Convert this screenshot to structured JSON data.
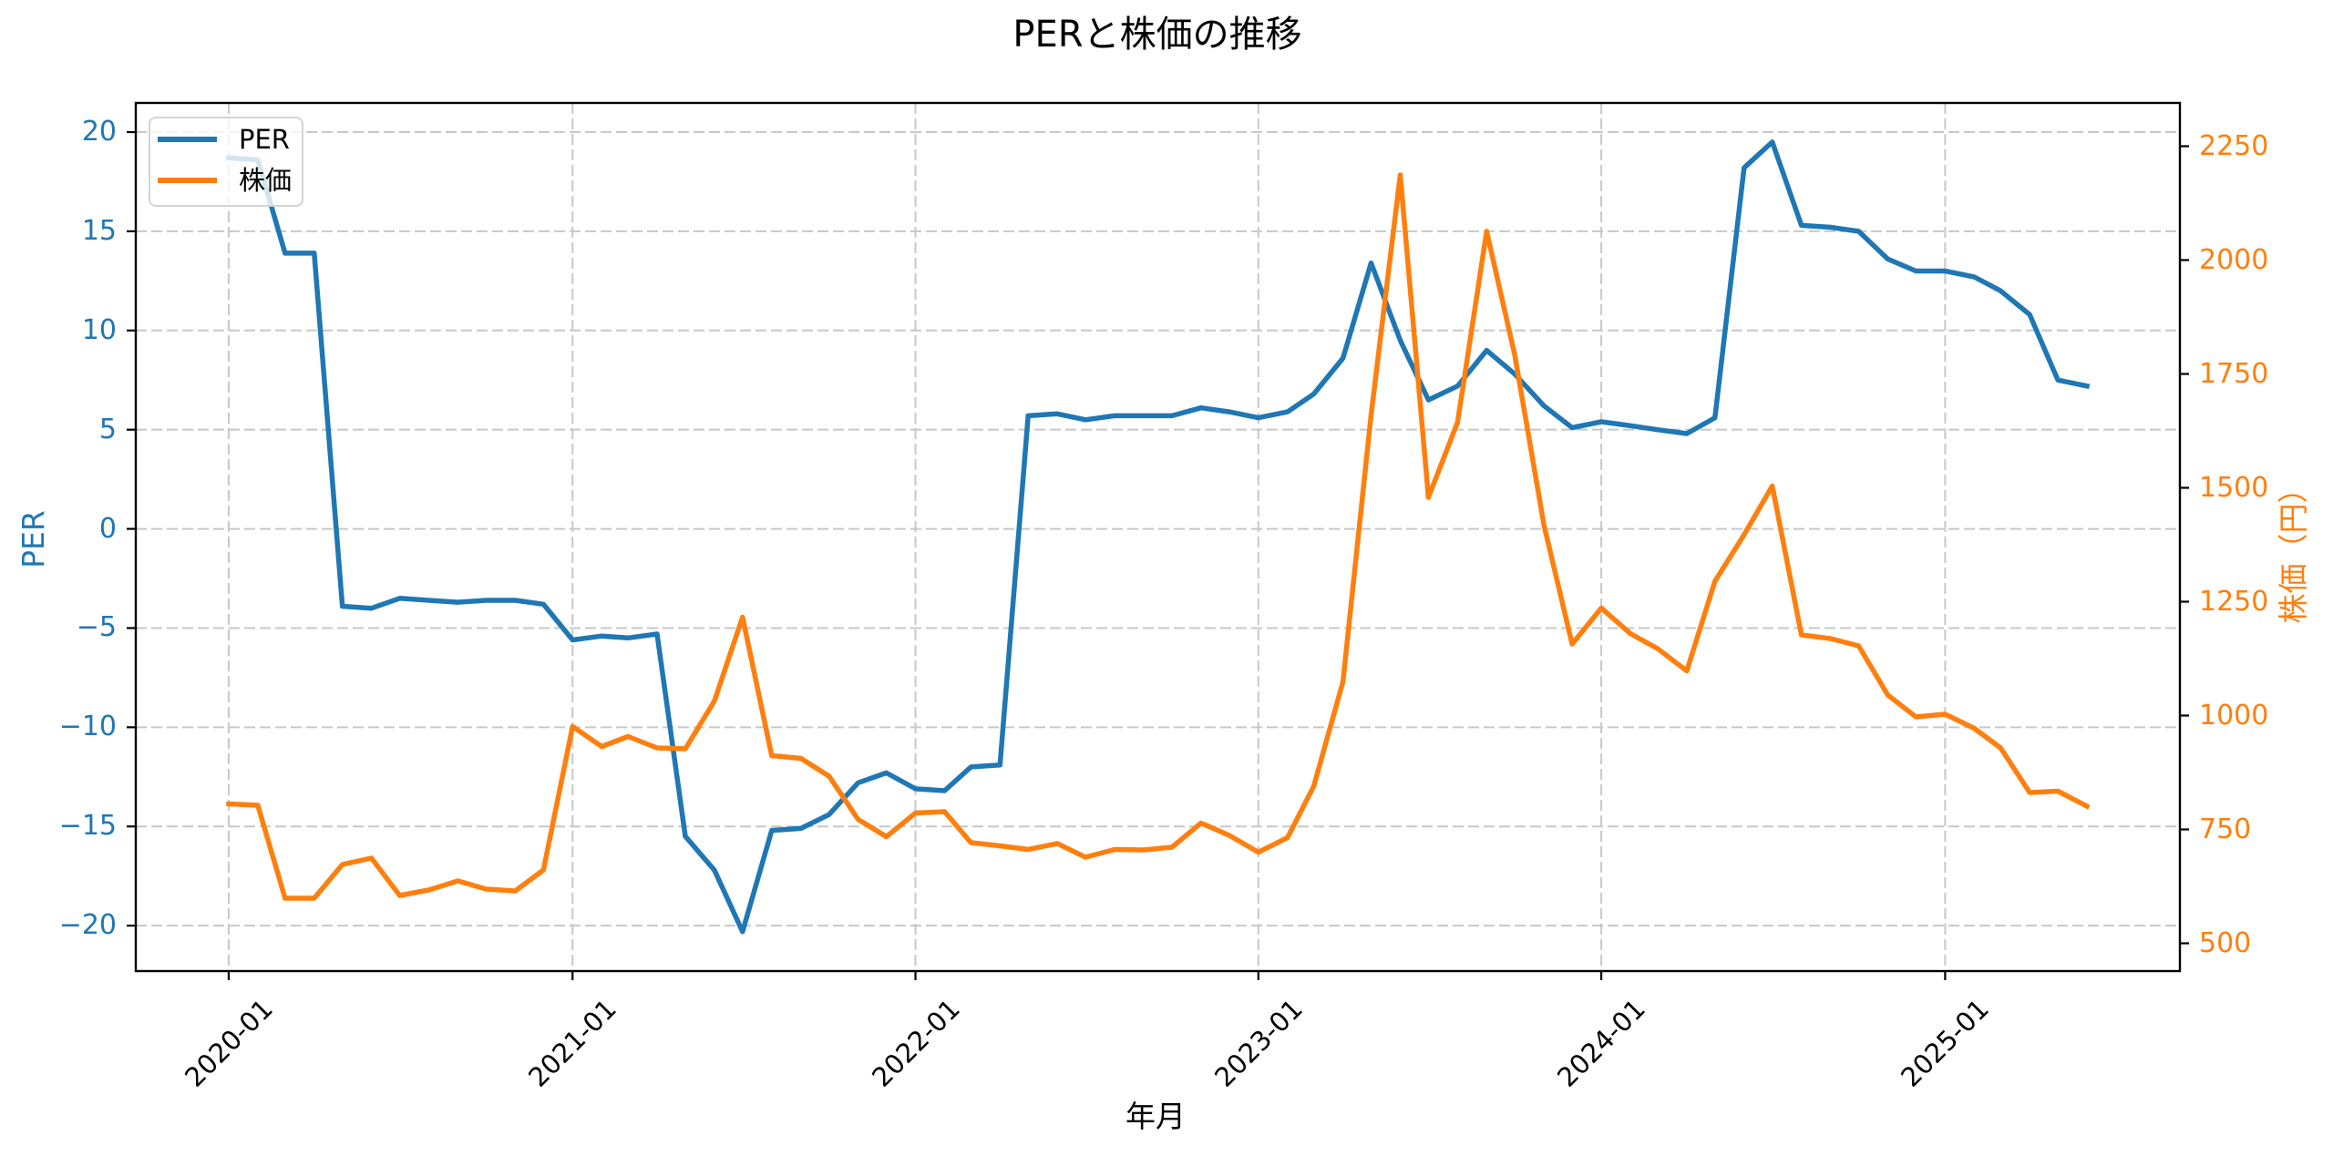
{
  "chart_data": {
    "type": "line",
    "title": "PERと株価の推移",
    "xlabel": "年月",
    "ylabel": "PER",
    "ylabel_right": "株価（円）",
    "x": [
      "2020-01",
      "2020-02",
      "2020-03",
      "2020-04",
      "2020-05",
      "2020-06",
      "2020-07",
      "2020-08",
      "2020-09",
      "2020-10",
      "2020-11",
      "2020-12",
      "2021-01",
      "2021-02",
      "2021-03",
      "2021-04",
      "2021-05",
      "2021-06",
      "2021-07",
      "2021-08",
      "2021-09",
      "2021-10",
      "2021-11",
      "2021-12",
      "2022-01",
      "2022-02",
      "2022-03",
      "2022-04",
      "2022-05",
      "2022-06",
      "2022-07",
      "2022-08",
      "2022-09",
      "2022-10",
      "2022-11",
      "2022-12",
      "2023-01",
      "2023-02",
      "2023-03",
      "2023-04",
      "2023-05",
      "2023-06",
      "2023-07",
      "2023-08",
      "2023-09",
      "2023-10",
      "2023-11",
      "2023-12",
      "2024-01",
      "2024-02",
      "2024-03",
      "2024-04",
      "2024-05",
      "2024-06",
      "2024-07",
      "2024-08",
      "2024-09",
      "2024-10",
      "2024-11",
      "2024-12",
      "2025-01",
      "2025-02",
      "2025-03",
      "2025-04",
      "2025-05",
      "2025-06"
    ],
    "series": [
      {
        "name": "PER",
        "axis": "left",
        "color": "#1f77b4",
        "values": [
          18.7,
          18.6,
          13.9,
          13.9,
          -3.9,
          -4.0,
          -3.5,
          -3.6,
          -3.7,
          -3.6,
          -3.6,
          -3.8,
          -5.6,
          -5.4,
          -5.5,
          -5.3,
          -15.5,
          -17.2,
          -20.3,
          -15.2,
          -15.1,
          -14.4,
          -12.8,
          -12.3,
          -13.1,
          -13.2,
          -12.0,
          -11.9,
          5.7,
          5.8,
          5.5,
          5.7,
          5.7,
          5.7,
          6.1,
          5.9,
          5.6,
          5.9,
          6.8,
          8.6,
          13.4,
          9.5,
          6.5,
          7.2,
          9.0,
          7.8,
          6.2,
          5.1,
          5.4,
          5.2,
          5.0,
          4.8,
          5.6,
          18.2,
          19.5,
          15.3,
          15.2,
          15.0,
          13.6,
          13.0,
          13.0,
          12.7,
          12.0,
          10.8,
          7.5,
          7.2
        ]
      },
      {
        "name": "株価",
        "axis": "right",
        "color": "#ff7f0e",
        "values": [
          806,
          803,
          599,
          599,
          673,
          687,
          605,
          617,
          637,
          619,
          615,
          661,
          976,
          932,
          954,
          929,
          927,
          1032,
          1216,
          912,
          906,
          867,
          772,
          734,
          786,
          789,
          721,
          714,
          706,
          719,
          689,
          706,
          705,
          711,
          764,
          737,
          700,
          732,
          845,
          1074,
          1660,
          2187,
          1479,
          1644,
          2063,
          1791,
          1418,
          1157,
          1236,
          1180,
          1147,
          1098,
          1295,
          1397,
          1504,
          1177,
          1169,
          1153,
          1045,
          997,
          1003,
          972,
          929,
          831,
          834,
          801
        ]
      }
    ],
    "xticks": [
      "2020-01",
      "2021-01",
      "2022-01",
      "2023-01",
      "2024-01",
      "2025-01"
    ],
    "yticks_left": [
      -20,
      -15,
      -10,
      -5,
      0,
      5,
      10,
      15,
      20
    ],
    "yticklabels_left": [
      "−20",
      "−15",
      "−10",
      "−5",
      "0",
      "5",
      "10",
      "15",
      "20"
    ],
    "yticks_right": [
      500,
      750,
      1000,
      1250,
      1500,
      1750,
      2000,
      2250
    ],
    "yticklabels_right": [
      "500",
      "750",
      "1000",
      "1250",
      "1500",
      "1750",
      "2000",
      "2250"
    ],
    "ylim_left": [
      -22.29,
      21.47
    ],
    "ylim_right": [
      439,
      2345
    ],
    "grid": true,
    "grid_color": "#c8c8c8",
    "legend_position": "upper left"
  }
}
